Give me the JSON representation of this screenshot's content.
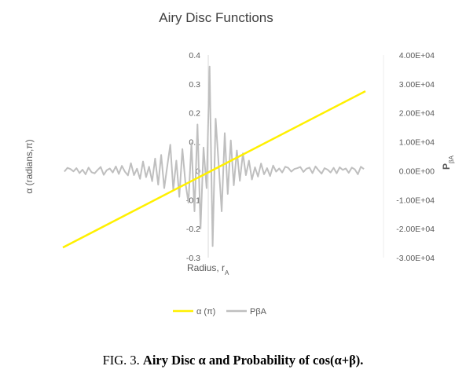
{
  "chart_data": {
    "type": "line",
    "title": "Airy Disc Functions",
    "xlabel": "Radius, r",
    "xlabel_sub": "A",
    "ylabel_left": "α (radians,π)",
    "ylabel_right": "P",
    "ylabel_right_sub": "βA",
    "y_left_ticks": [
      "0.4",
      "0.3",
      "0.2",
      "0.1",
      "0",
      "-0.1",
      "-0.2",
      "-0.3"
    ],
    "y_left_range": [
      -0.3,
      0.4
    ],
    "y_right_ticks": [
      "4.00E+04",
      "3.00E+04",
      "2.00E+04",
      "1.00E+04",
      "0.00E+00",
      "-1.00E+04",
      "-2.00E+04",
      "-3.00E+04"
    ],
    "y_right_range": [
      -30000,
      40000
    ],
    "x_range": [
      -1,
      1
    ],
    "series": [
      {
        "name": "α (π)",
        "axis": "left",
        "color": "#FFF000",
        "x": [
          -1,
          1
        ],
        "y": [
          -0.265,
          0.275
        ]
      },
      {
        "name": "PβA",
        "axis": "right",
        "color": "#BFBFBF",
        "x": [
          -0.99,
          -0.97,
          -0.95,
          -0.93,
          -0.91,
          -0.89,
          -0.87,
          -0.85,
          -0.83,
          -0.81,
          -0.79,
          -0.77,
          -0.75,
          -0.73,
          -0.71,
          -0.69,
          -0.67,
          -0.65,
          -0.63,
          -0.61,
          -0.59,
          -0.57,
          -0.55,
          -0.53,
          -0.51,
          -0.49,
          -0.47,
          -0.45,
          -0.43,
          -0.41,
          -0.39,
          -0.37,
          -0.35,
          -0.33,
          -0.31,
          -0.29,
          -0.27,
          -0.25,
          -0.23,
          -0.21,
          -0.19,
          -0.17,
          -0.15,
          -0.13,
          -0.11,
          -0.09,
          -0.07,
          -0.05,
          -0.03,
          -0.01,
          0.01,
          0.03,
          0.05,
          0.07,
          0.09,
          0.11,
          0.13,
          0.15,
          0.17,
          0.19,
          0.21,
          0.23,
          0.25,
          0.27,
          0.29,
          0.31,
          0.33,
          0.35,
          0.37,
          0.39,
          0.41,
          0.43,
          0.45,
          0.47,
          0.49,
          0.51,
          0.53,
          0.55,
          0.57,
          0.59,
          0.61,
          0.63,
          0.65,
          0.67,
          0.69,
          0.71,
          0.73,
          0.75,
          0.77,
          0.79,
          0.81,
          0.83,
          0.85,
          0.87,
          0.89,
          0.91,
          0.93,
          0.95,
          0.97,
          0.99
        ],
        "y": [
          -300,
          1000,
          600,
          -200,
          900,
          -800,
          400,
          -1200,
          1100,
          -500,
          -900,
          300,
          1300,
          -1400,
          200,
          800,
          -600,
          1500,
          -1100,
          1700,
          -300,
          -1600,
          2600,
          -1500,
          700,
          -2800,
          3200,
          -2200,
          1400,
          -3600,
          4200,
          -4800,
          5500,
          -6000,
          1500,
          9000,
          -6500,
          3500,
          -9000,
          7500,
          -4000,
          -11000,
          9500,
          -14000,
          16000,
          -20000,
          8000,
          -6000,
          36000,
          -26000,
          18000,
          2000,
          -14000,
          13000,
          -8000,
          10500,
          -5000,
          7000,
          -3500,
          6000,
          -1500,
          3500,
          -3000,
          1200,
          -2000,
          2500,
          -1200,
          900,
          -1800,
          1800,
          -300,
          800,
          -600,
          1400,
          1000,
          -300,
          600,
          900,
          1300,
          -400,
          700,
          1100,
          -800,
          1500,
          200,
          -1000,
          900,
          400,
          -600,
          1000,
          -900,
          1200,
          300,
          800,
          -700,
          1100,
          500,
          -1200,
          1400,
          600
        ]
      }
    ],
    "legend": "bottom"
  },
  "caption": {
    "prefix": "FIG. 3.",
    "bold": "Airy Disc α and Probability of cos(α+β)."
  }
}
